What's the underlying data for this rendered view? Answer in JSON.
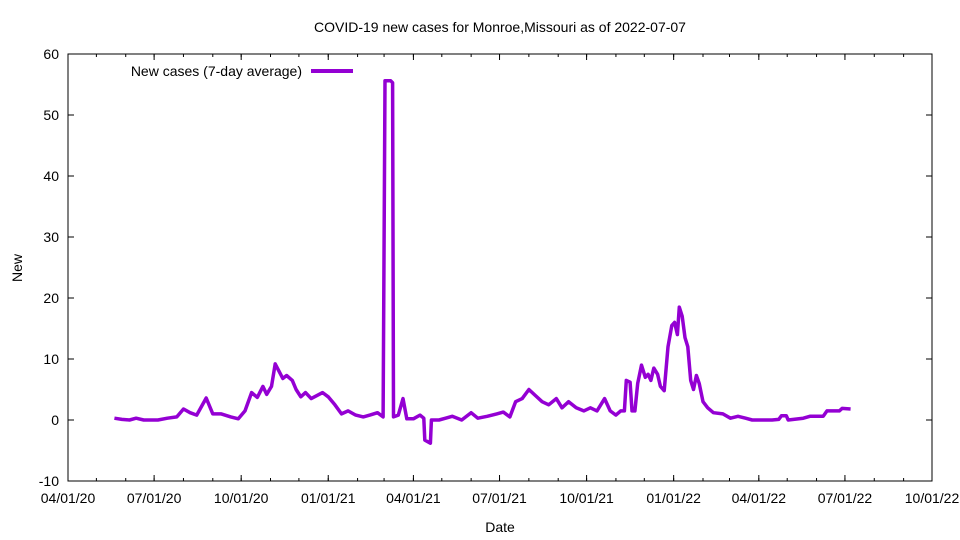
{
  "chart_data": {
    "type": "line",
    "title": "COVID-19 new cases for Monroe,Missouri as of 2022-07-07",
    "xlabel": "Date",
    "ylabel": "New",
    "xlim": [
      "2020-04-01",
      "2022-10-01"
    ],
    "ylim": [
      -10,
      60
    ],
    "x_ticks": [
      "04/01/20",
      "07/01/20",
      "10/01/20",
      "01/01/21",
      "04/01/21",
      "07/01/21",
      "10/01/21",
      "01/01/22",
      "04/01/22",
      "07/01/22",
      "10/01/22"
    ],
    "y_ticks": [
      -10,
      0,
      10,
      20,
      30,
      40,
      50,
      60
    ],
    "legend_position": "top-left",
    "grid": false,
    "series": [
      {
        "name": "New cases (7-day average)",
        "color": "#9400d3",
        "points": [
          [
            "2020-05-20",
            0.3
          ],
          [
            "2020-05-28",
            0.1
          ],
          [
            "2020-06-05",
            0.0
          ],
          [
            "2020-06-12",
            0.3
          ],
          [
            "2020-06-20",
            0.0
          ],
          [
            "2020-07-05",
            0.0
          ],
          [
            "2020-07-15",
            0.3
          ],
          [
            "2020-07-25",
            0.5
          ],
          [
            "2020-08-01",
            1.8
          ],
          [
            "2020-08-08",
            1.2
          ],
          [
            "2020-08-15",
            0.8
          ],
          [
            "2020-08-25",
            3.6
          ],
          [
            "2020-09-01",
            1.0
          ],
          [
            "2020-09-10",
            1.0
          ],
          [
            "2020-09-20",
            0.5
          ],
          [
            "2020-09-28",
            0.2
          ],
          [
            "2020-10-05",
            1.5
          ],
          [
            "2020-10-12",
            4.5
          ],
          [
            "2020-10-18",
            3.7
          ],
          [
            "2020-10-24",
            5.5
          ],
          [
            "2020-10-28",
            4.2
          ],
          [
            "2020-11-02",
            5.5
          ],
          [
            "2020-11-06",
            9.2
          ],
          [
            "2020-11-10",
            8.0
          ],
          [
            "2020-11-14",
            6.8
          ],
          [
            "2020-11-18",
            7.3
          ],
          [
            "2020-11-24",
            6.5
          ],
          [
            "2020-11-28",
            5.0
          ],
          [
            "2020-12-03",
            3.8
          ],
          [
            "2020-12-08",
            4.5
          ],
          [
            "2020-12-14",
            3.5
          ],
          [
            "2020-12-20",
            4.0
          ],
          [
            "2020-12-26",
            4.5
          ],
          [
            "2021-01-01",
            3.8
          ],
          [
            "2021-01-08",
            2.5
          ],
          [
            "2021-01-15",
            1.0
          ],
          [
            "2021-01-22",
            1.5
          ],
          [
            "2021-01-30",
            0.8
          ],
          [
            "2021-02-07",
            0.5
          ],
          [
            "2021-02-14",
            0.8
          ],
          [
            "2021-02-22",
            1.2
          ],
          [
            "2021-02-28",
            0.5
          ],
          [
            "2021-03-02",
            55.6
          ],
          [
            "2021-03-08",
            55.6
          ],
          [
            "2021-03-10",
            55.3
          ],
          [
            "2021-03-11",
            0.5
          ],
          [
            "2021-03-16",
            0.8
          ],
          [
            "2021-03-21",
            3.5
          ],
          [
            "2021-03-25",
            0.2
          ],
          [
            "2021-04-01",
            0.2
          ],
          [
            "2021-04-08",
            0.8
          ],
          [
            "2021-04-12",
            0.3
          ],
          [
            "2021-04-13",
            -3.3
          ],
          [
            "2021-04-19",
            -3.8
          ],
          [
            "2021-04-20",
            0.0
          ],
          [
            "2021-04-28",
            0.0
          ],
          [
            "2021-05-05",
            0.3
          ],
          [
            "2021-05-12",
            0.6
          ],
          [
            "2021-05-22",
            0.0
          ],
          [
            "2021-06-01",
            1.2
          ],
          [
            "2021-06-08",
            0.3
          ],
          [
            "2021-06-18",
            0.6
          ],
          [
            "2021-06-28",
            1.0
          ],
          [
            "2021-07-05",
            1.3
          ],
          [
            "2021-07-12",
            0.5
          ],
          [
            "2021-07-18",
            3.0
          ],
          [
            "2021-07-25",
            3.5
          ],
          [
            "2021-08-01",
            5.0
          ],
          [
            "2021-08-08",
            4.0
          ],
          [
            "2021-08-15",
            3.0
          ],
          [
            "2021-08-22",
            2.5
          ],
          [
            "2021-08-30",
            3.5
          ],
          [
            "2021-09-05",
            2.0
          ],
          [
            "2021-09-12",
            3.0
          ],
          [
            "2021-09-20",
            2.0
          ],
          [
            "2021-09-28",
            1.5
          ],
          [
            "2021-10-05",
            2.0
          ],
          [
            "2021-10-12",
            1.5
          ],
          [
            "2021-10-20",
            3.5
          ],
          [
            "2021-10-26",
            1.5
          ],
          [
            "2021-11-01",
            0.8
          ],
          [
            "2021-11-06",
            1.5
          ],
          [
            "2021-11-10",
            1.5
          ],
          [
            "2021-11-12",
            6.5
          ],
          [
            "2021-11-16",
            6.2
          ],
          [
            "2021-11-18",
            1.5
          ],
          [
            "2021-11-21",
            1.5
          ],
          [
            "2021-11-24",
            6.0
          ],
          [
            "2021-11-28",
            9.0
          ],
          [
            "2021-12-02",
            7.0
          ],
          [
            "2021-12-05",
            7.5
          ],
          [
            "2021-12-08",
            6.5
          ],
          [
            "2021-12-11",
            8.5
          ],
          [
            "2021-12-15",
            7.5
          ],
          [
            "2021-12-18",
            5.5
          ],
          [
            "2021-12-22",
            4.8
          ],
          [
            "2021-12-26",
            12.0
          ],
          [
            "2021-12-30",
            15.5
          ],
          [
            "2022-01-02",
            16.0
          ],
          [
            "2022-01-05",
            14.0
          ],
          [
            "2022-01-07",
            18.5
          ],
          [
            "2022-01-10",
            17.0
          ],
          [
            "2022-01-13",
            13.5
          ],
          [
            "2022-01-16",
            12.0
          ],
          [
            "2022-01-19",
            6.5
          ],
          [
            "2022-01-22",
            5.0
          ],
          [
            "2022-01-25",
            7.3
          ],
          [
            "2022-01-28",
            6.0
          ],
          [
            "2022-02-01",
            3.0
          ],
          [
            "2022-02-06",
            2.0
          ],
          [
            "2022-02-12",
            1.2
          ],
          [
            "2022-02-22",
            1.0
          ],
          [
            "2022-03-02",
            0.3
          ],
          [
            "2022-03-10",
            0.6
          ],
          [
            "2022-03-18",
            0.3
          ],
          [
            "2022-03-25",
            0.0
          ],
          [
            "2022-04-15",
            0.0
          ],
          [
            "2022-04-22",
            0.1
          ],
          [
            "2022-04-25",
            0.7
          ],
          [
            "2022-04-30",
            0.7
          ],
          [
            "2022-05-02",
            0.0
          ],
          [
            "2022-05-18",
            0.3
          ],
          [
            "2022-05-25",
            0.6
          ],
          [
            "2022-06-08",
            0.6
          ],
          [
            "2022-06-12",
            1.5
          ],
          [
            "2022-06-25",
            1.5
          ],
          [
            "2022-06-28",
            1.9
          ],
          [
            "2022-07-07",
            1.8
          ]
        ]
      }
    ]
  }
}
